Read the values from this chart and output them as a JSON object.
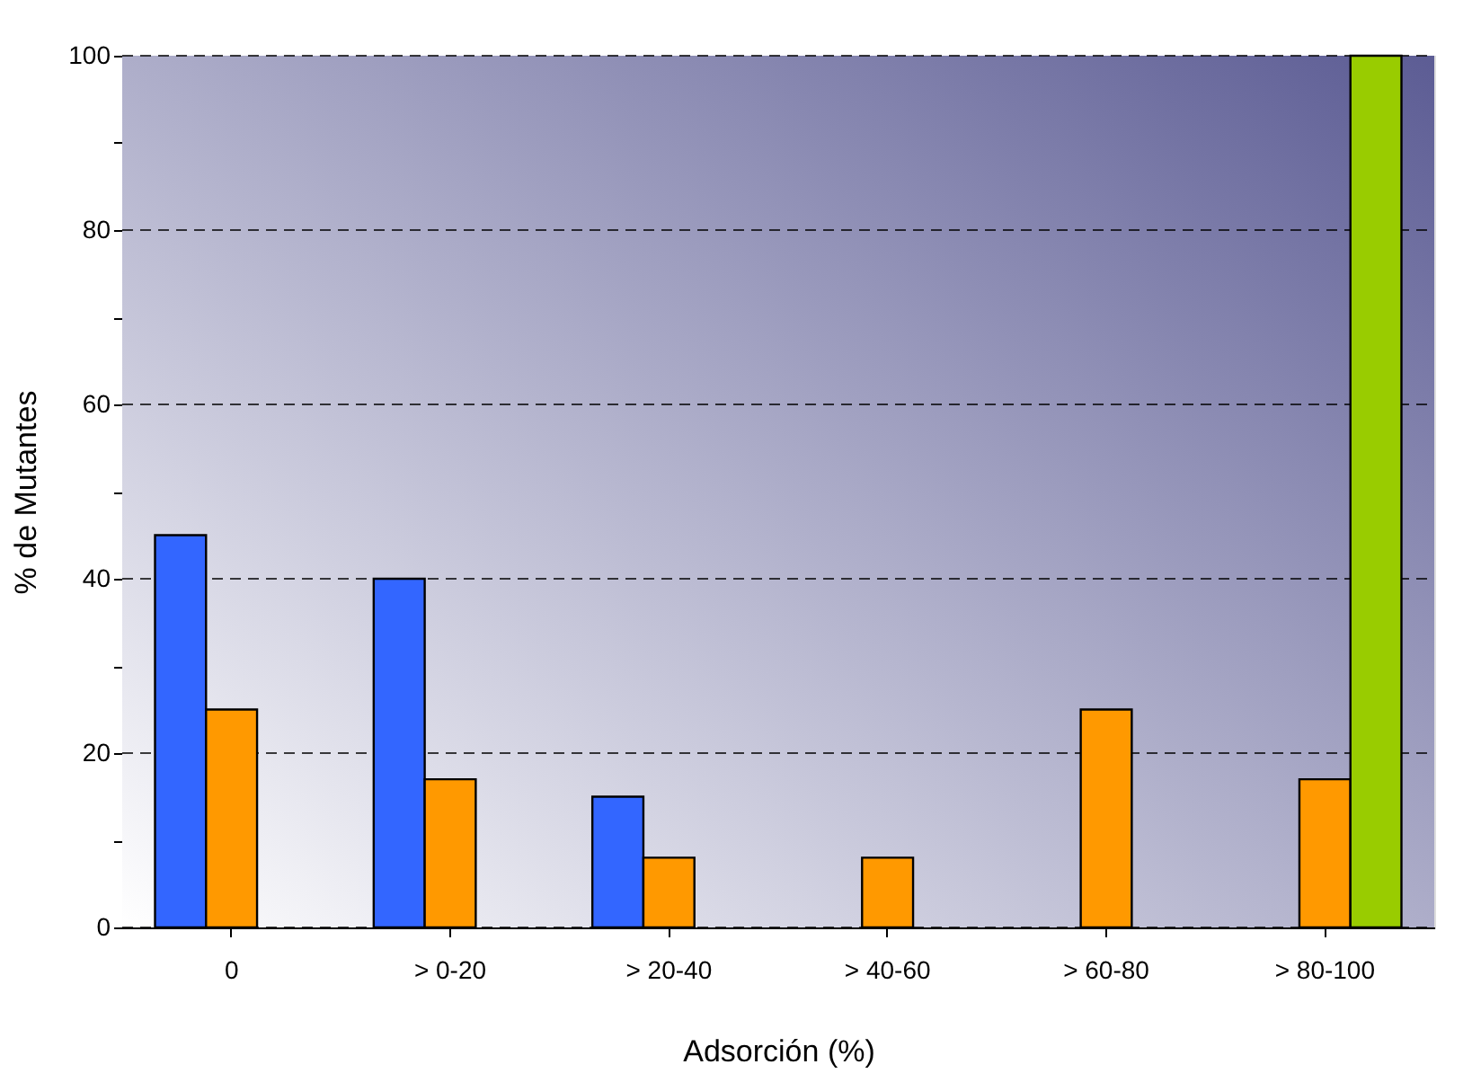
{
  "chart_data": {
    "type": "bar",
    "xlabel": "Adsorción (%)",
    "ylabel": "% de Mutantes",
    "categories": [
      "0",
      "> 0-20",
      "> 20-40",
      "> 40-60",
      "> 60-80",
      "> 80-100"
    ],
    "series": [
      {
        "color": "#3366ff",
        "values": [
          45,
          40,
          15,
          null,
          null,
          null
        ]
      },
      {
        "color": "#ff9900",
        "values": [
          25,
          17,
          8,
          8,
          25,
          17
        ]
      },
      {
        "color": "#99cc00",
        "values": [
          null,
          null,
          null,
          null,
          null,
          100
        ]
      }
    ],
    "ylim": [
      0,
      100
    ],
    "yticks": [
      0,
      {
        "value": 10,
        "label": null
      },
      20,
      {
        "value": 30,
        "label": null
      },
      40,
      {
        "value": 50,
        "label": null
      },
      60,
      {
        "value": 70,
        "label": null
      },
      80,
      {
        "value": 90,
        "label": null
      },
      100
    ],
    "grid": "y",
    "line_style": "dashed",
    "legend": false
  }
}
